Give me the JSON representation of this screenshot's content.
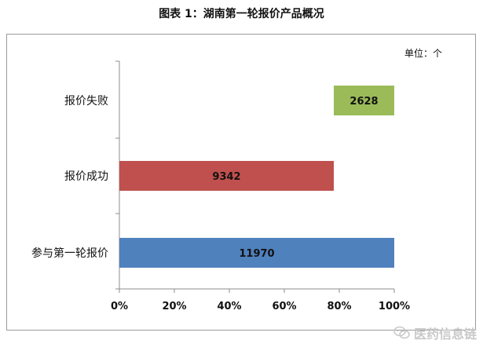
{
  "title": "图表  1：湖南第一轮报价产品概况",
  "unit_label": "单位：个",
  "watermark": {
    "text": "医药信息链",
    "icon": "wechat-icon"
  },
  "colors": {
    "bar_blue": "#4f81bd",
    "bar_red": "#c0504d",
    "bar_green": "#9bbb59",
    "axis": "#8c8c8c"
  },
  "chart_data": {
    "type": "bar",
    "orientation": "horizontal",
    "title": "图表  1：湖南第一轮报价产品概况",
    "unit": "单位：个",
    "categories": [
      "参与第一轮报价",
      "报价成功",
      "报价失败"
    ],
    "series": [
      {
        "values": [
          11970,
          9342,
          2628
        ],
        "colors": [
          "#4f81bd",
          "#c0504d",
          "#9bbb59"
        ],
        "percent_range": [
          [
            0,
            100
          ],
          [
            0,
            78
          ],
          [
            78,
            100
          ]
        ]
      }
    ],
    "x_ticks": [
      "0%",
      "20%",
      "40%",
      "60%",
      "80%",
      "100%"
    ],
    "xlim": [
      0,
      100
    ],
    "grid": false,
    "legend": "none"
  }
}
